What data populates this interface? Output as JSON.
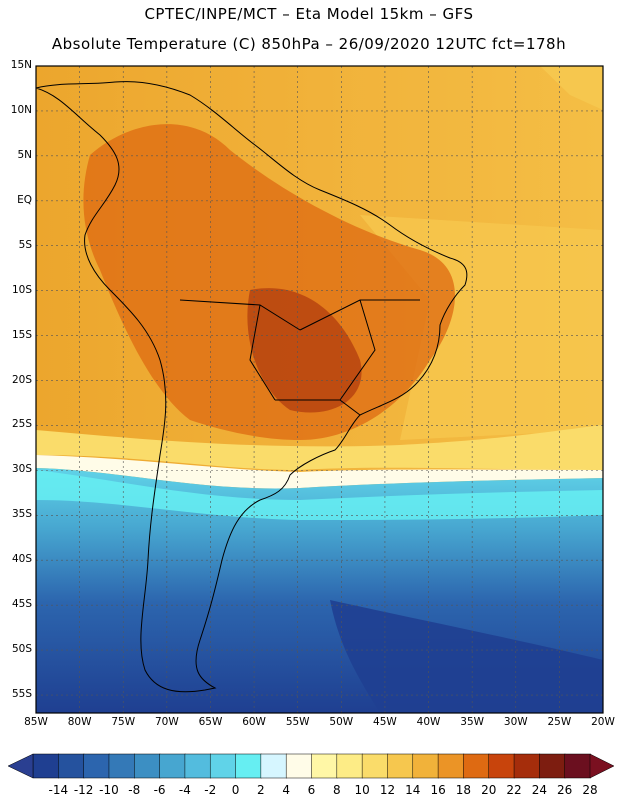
{
  "title": {
    "line1": "CPTEC/INPE/MCT –  Eta Model 15km – GFS",
    "line2": "Absolute Temperature (C) 850hPa – 26/09/2020 12UTC fct=178h"
  },
  "map": {
    "lat_labels": [
      "15N",
      "10N",
      "5N",
      "EQ",
      "5S",
      "10S",
      "15S",
      "20S",
      "25S",
      "30S",
      "35S",
      "40S",
      "45S",
      "50S",
      "55S"
    ],
    "lon_labels": [
      "85W",
      "80W",
      "75W",
      "70W",
      "65W",
      "60W",
      "55W",
      "50W",
      "45W",
      "40W",
      "35W",
      "30W",
      "25W",
      "20W"
    ],
    "grid": true,
    "lat_range": [
      15,
      -57
    ],
    "lon_range": [
      -85,
      -20
    ]
  },
  "colorbar": {
    "labels": [
      "-14",
      "-12",
      "-10",
      "-8",
      "-6",
      "-4",
      "-2",
      "0",
      "2",
      "4",
      "6",
      "8",
      "10",
      "12",
      "14",
      "16",
      "18",
      "20",
      "22",
      "24",
      "26",
      "28"
    ],
    "colors": [
      "#1f3f91",
      "#25529e",
      "#2c65ae",
      "#3479b7",
      "#3c8fc3",
      "#47a6d0",
      "#53bcde",
      "#60d3e8",
      "#66eef2",
      "#d6f6ff",
      "#fffce8",
      "#fff7a6",
      "#fdec86",
      "#fadc6a",
      "#f6c74e",
      "#f1b23a",
      "#eb9426",
      "#de6a12",
      "#c8440c",
      "#a52d0b",
      "#7d1d10",
      "#6b0f1f"
    ],
    "left_arrow_color": "#2a3f91",
    "right_arrow_color": "#7a1020"
  }
}
